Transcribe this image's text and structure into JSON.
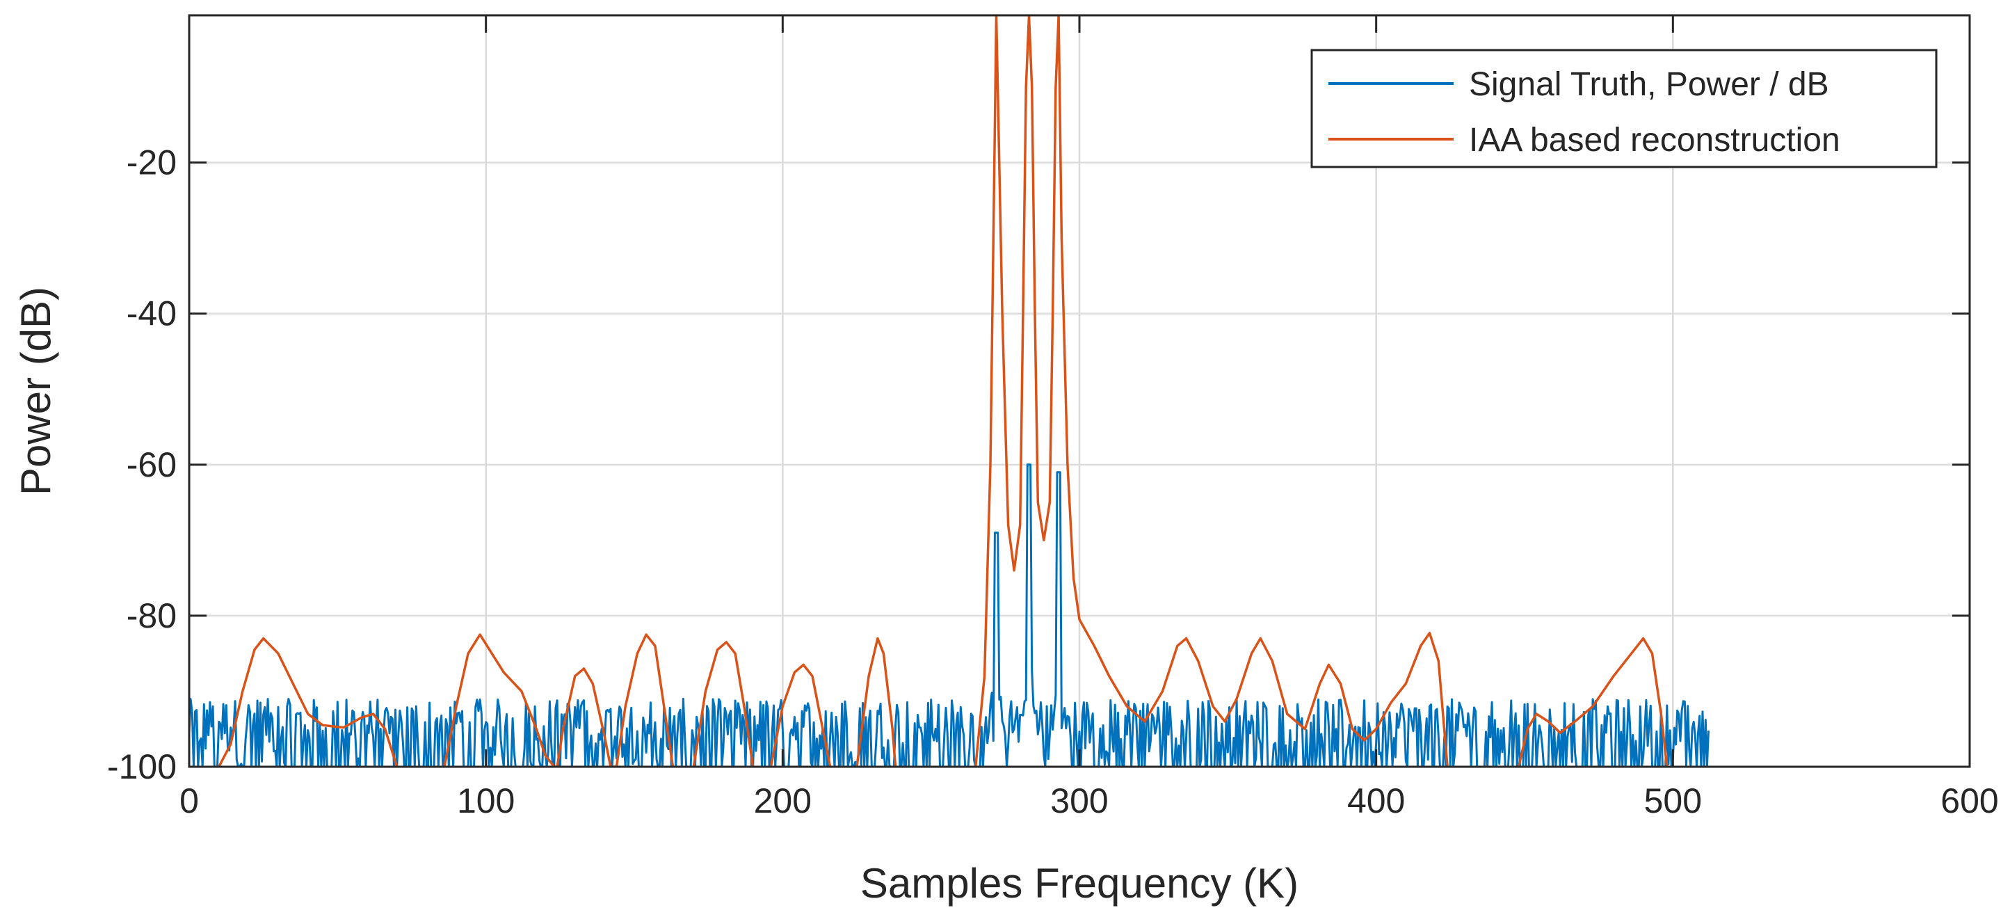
{
  "chart_data": {
    "type": "line",
    "title": "",
    "xlabel": "Samples Frequency (K)",
    "ylabel": "Power (dB)",
    "xlim": [
      0,
      600
    ],
    "ylim": [
      -100,
      -0.5
    ],
    "xticks": [
      0,
      100,
      200,
      300,
      400,
      500,
      600
    ],
    "yticks": [
      -100,
      -80,
      -60,
      -40,
      -20
    ],
    "xtick_labels": [
      "0",
      "100",
      "200",
      "300",
      "400",
      "500",
      "600"
    ],
    "ytick_labels": [
      "-100",
      "-80",
      "-60",
      "-40",
      "-20"
    ],
    "grid": true,
    "legend_position": "top-right",
    "series": [
      {
        "name": "Signal Truth, Power / dB",
        "color": "#0072BD",
        "style": "noise-floor spikes between -100 and about -92 dB from 0 to 512, with three tones",
        "x_range": [
          0,
          512
        ],
        "noise_floor": -100,
        "noise_peak": -91,
        "peaks": [
          {
            "x": 272,
            "y": -69
          },
          {
            "x": 283,
            "y": -60
          },
          {
            "x": 293,
            "y": -61
          }
        ]
      },
      {
        "name": "IAA based reconstruction",
        "color": "#D95319",
        "points": [
          [
            10,
            -100
          ],
          [
            14,
            -97
          ],
          [
            18,
            -90
          ],
          [
            22,
            -84.5
          ],
          [
            25,
            -83
          ],
          [
            30,
            -85
          ],
          [
            35,
            -89
          ],
          [
            40,
            -93
          ],
          [
            45,
            -94.5
          ],
          [
            52,
            -94.8
          ],
          [
            58,
            -93.5
          ],
          [
            62,
            -93
          ],
          [
            66,
            -95
          ],
          [
            70,
            -100
          ],
          [
            86,
            -100
          ],
          [
            90,
            -92
          ],
          [
            94,
            -85
          ],
          [
            98,
            -82.5
          ],
          [
            102,
            -85
          ],
          [
            106,
            -87.5
          ],
          [
            112,
            -90
          ],
          [
            117,
            -95
          ],
          [
            120,
            -98.5
          ],
          [
            123,
            -100
          ],
          [
            124,
            -100
          ],
          [
            126,
            -95
          ],
          [
            130,
            -88
          ],
          [
            133,
            -87
          ],
          [
            136,
            -89
          ],
          [
            140,
            -96
          ],
          [
            142,
            -100
          ],
          [
            144,
            -100
          ],
          [
            147,
            -92
          ],
          [
            151,
            -85
          ],
          [
            154,
            -82.5
          ],
          [
            157,
            -84
          ],
          [
            160,
            -92
          ],
          [
            163,
            -100
          ],
          [
            170,
            -100
          ],
          [
            174,
            -90
          ],
          [
            178,
            -84.5
          ],
          [
            181,
            -83.5
          ],
          [
            184,
            -85
          ],
          [
            187,
            -92
          ],
          [
            190,
            -100
          ],
          [
            196,
            -100
          ],
          [
            200,
            -92
          ],
          [
            204,
            -87.5
          ],
          [
            207,
            -86.5
          ],
          [
            210,
            -88
          ],
          [
            214,
            -96
          ],
          [
            216,
            -100
          ],
          [
            225,
            -100
          ],
          [
            229,
            -88
          ],
          [
            232,
            -83
          ],
          [
            234,
            -85
          ],
          [
            237,
            -95
          ],
          [
            238,
            -100
          ],
          [
            265,
            -100
          ],
          [
            268,
            -88
          ],
          [
            270,
            -60
          ],
          [
            271,
            -30
          ],
          [
            272,
            -0.5
          ],
          [
            274,
            -40
          ],
          [
            276,
            -68
          ],
          [
            278,
            -74
          ],
          [
            280,
            -68
          ],
          [
            281,
            -40
          ],
          [
            282,
            -10
          ],
          [
            283,
            -0.5
          ],
          [
            284,
            -10
          ],
          [
            285,
            -40
          ],
          [
            286,
            -65
          ],
          [
            288,
            -70
          ],
          [
            290,
            -65
          ],
          [
            291,
            -40
          ],
          [
            292,
            -10
          ],
          [
            293,
            -0.5
          ],
          [
            294,
            -30
          ],
          [
            296,
            -60
          ],
          [
            298,
            -75
          ],
          [
            300,
            -80.5
          ],
          [
            305,
            -84
          ],
          [
            310,
            -88
          ],
          [
            316,
            -92
          ],
          [
            322,
            -94
          ],
          [
            328,
            -90
          ],
          [
            333,
            -84
          ],
          [
            336,
            -83
          ],
          [
            340,
            -86
          ],
          [
            345,
            -92
          ],
          [
            349,
            -94
          ],
          [
            353,
            -91
          ],
          [
            358,
            -85
          ],
          [
            361,
            -83
          ],
          [
            365,
            -86
          ],
          [
            370,
            -93
          ],
          [
            376,
            -95
          ],
          [
            381,
            -89
          ],
          [
            384,
            -86.5
          ],
          [
            388,
            -89
          ],
          [
            392,
            -95
          ],
          [
            396,
            -96.5
          ],
          [
            400,
            -95
          ],
          [
            405,
            -91.5
          ],
          [
            410,
            -89
          ],
          [
            415,
            -84
          ],
          [
            418,
            -82.3
          ],
          [
            421,
            -86
          ],
          [
            424,
            -100
          ],
          [
            448,
            -100
          ],
          [
            451,
            -95
          ],
          [
            454,
            -93
          ],
          [
            458,
            -94
          ],
          [
            462,
            -95.5
          ],
          [
            467,
            -94
          ],
          [
            473,
            -92
          ],
          [
            480,
            -88
          ],
          [
            487,
            -84.5
          ],
          [
            490,
            -83
          ],
          [
            493,
            -85
          ],
          [
            496,
            -93
          ],
          [
            498,
            -100
          ]
        ]
      }
    ]
  }
}
